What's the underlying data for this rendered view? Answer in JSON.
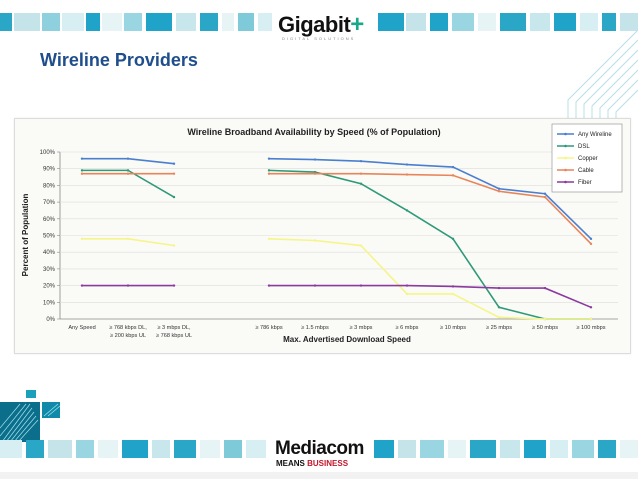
{
  "header": {
    "brand": "Gigabit",
    "brand_plus": "+",
    "brand_subtitle": "DIGITAL SOLUTIONS"
  },
  "slide": {
    "title": "Wireline Providers"
  },
  "footer": {
    "logo_main": "Mediacom",
    "logo_sub_a": "MEANS",
    "logo_sub_b": "BUSINESS"
  },
  "colors": {
    "title": "#1f4e8c",
    "teal": "#1aa88a",
    "accent_blue": "#1fa3c8"
  },
  "chart_data": {
    "type": "line",
    "title": "Wireline Broadband Availability by Speed (% of Population)",
    "xlabel": "Max. Advertised Download Speed",
    "ylabel": "Percent of Population",
    "ylim": [
      0,
      100
    ],
    "yticks": [
      "0%",
      "10%",
      "20%",
      "30%",
      "40%",
      "50%",
      "60%",
      "70%",
      "80%",
      "90%",
      "100%"
    ],
    "groups": [
      {
        "categories": [
          "Any Speed",
          "≥ 768 kbps DL, ≥ 200 kbps UL",
          "≥ 3 mbps DL, ≥ 768 kbps UL"
        ],
        "category_lines": [
          [
            "Any Speed"
          ],
          [
            "≥ 768 kbps DL,",
            "≥ 200 kbps UL"
          ],
          [
            "≥ 3 mbps DL,",
            "≥ 768 kbps UL"
          ]
        ],
        "series": [
          {
            "name": "Any Wireline",
            "color": "#4a7fd0",
            "values": [
              96,
              96,
              93
            ]
          },
          {
            "name": "DSL",
            "color": "#2e9a78",
            "values": [
              89,
              89,
              73
            ]
          },
          {
            "name": "Copper",
            "color": "#f5f58a",
            "values": [
              48,
              48,
              44
            ]
          },
          {
            "name": "Cable",
            "color": "#e8845a",
            "values": [
              87,
              87,
              87
            ]
          },
          {
            "name": "Fiber",
            "color": "#8a3aa0",
            "values": [
              20,
              20,
              20
            ]
          }
        ]
      },
      {
        "categories": [
          "≥ 786 kbps",
          "≥ 1.5 mbps",
          "≥ 3 mbps",
          "≥ 6 mbps",
          "≥ 10 mbps",
          "≥ 25 mbps",
          "≥ 50 mbps",
          "≥ 100 mbps"
        ],
        "series": [
          {
            "name": "Any Wireline",
            "color": "#4a7fd0",
            "values": [
              96,
              95.5,
              94.5,
              92.5,
              91,
              78,
              75,
              48
            ]
          },
          {
            "name": "DSL",
            "color": "#2e9a78",
            "values": [
              89,
              88,
              81,
              65,
              48,
              7,
              0,
              0
            ]
          },
          {
            "name": "Copper",
            "color": "#f5f58a",
            "values": [
              48,
              47,
              44,
              15,
              15,
              1,
              0,
              0
            ]
          },
          {
            "name": "Cable",
            "color": "#e8845a",
            "values": [
              87,
              87,
              87,
              86.5,
              86,
              76.5,
              73,
              45
            ]
          },
          {
            "name": "Fiber",
            "color": "#8a3aa0",
            "values": [
              20,
              20,
              20,
              20,
              19.5,
              18.5,
              18.5,
              7
            ]
          }
        ]
      }
    ],
    "legend": {
      "position": "top-right",
      "entries": [
        {
          "name": "Any Wireline",
          "color": "#4a7fd0"
        },
        {
          "name": "DSL",
          "color": "#2e9a78"
        },
        {
          "name": "Copper",
          "color": "#f5f58a"
        },
        {
          "name": "Cable",
          "color": "#e8845a"
        },
        {
          "name": "Fiber",
          "color": "#8a3aa0"
        }
      ]
    }
  }
}
